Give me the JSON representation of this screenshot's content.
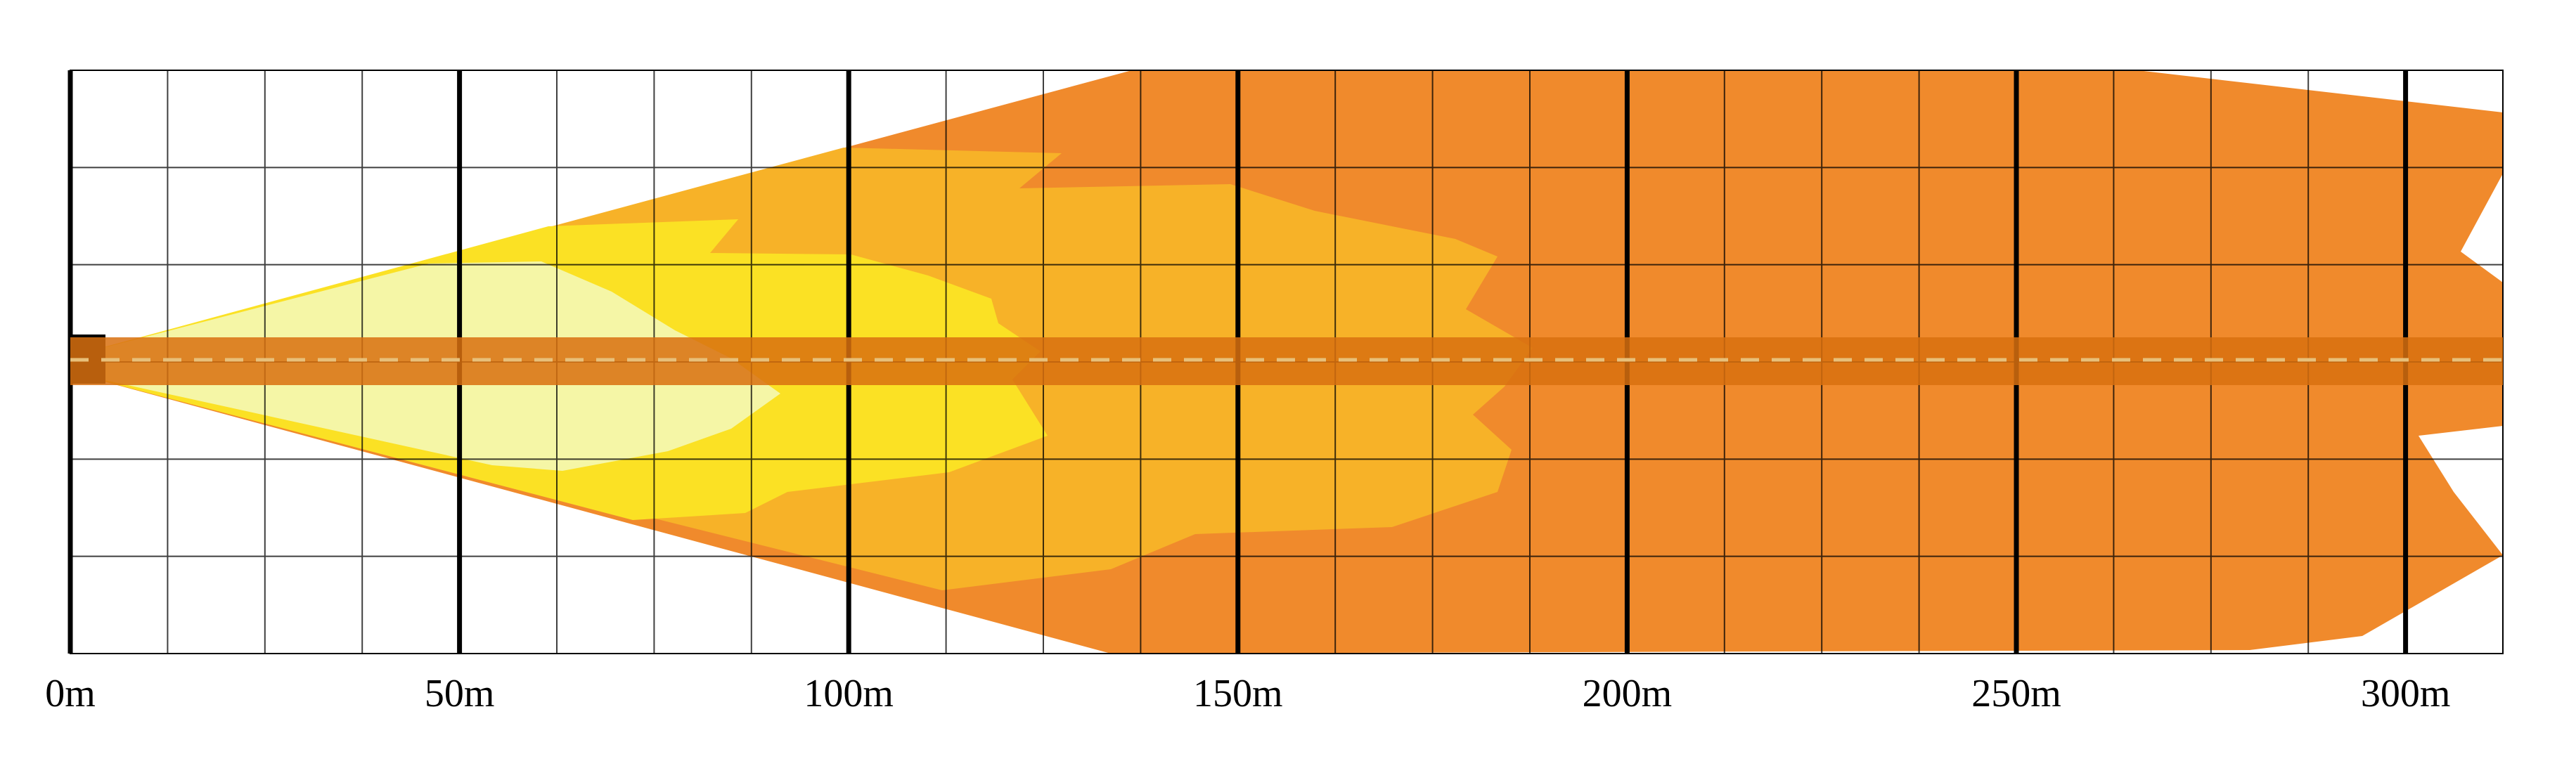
{
  "diagram": {
    "x_unit": "m",
    "x_range": [
      0,
      312.5
    ],
    "x_ticks": [
      {
        "value": 0,
        "label": "0m"
      },
      {
        "value": 50,
        "label": "50m"
      },
      {
        "value": 100,
        "label": "100m"
      },
      {
        "value": 150,
        "label": "150m"
      },
      {
        "value": 200,
        "label": "200m"
      },
      {
        "value": 250,
        "label": "250m"
      },
      {
        "value": 300,
        "label": "300m"
      }
    ],
    "zones": [
      {
        "color": "#f08a2c"
      },
      {
        "color": "#f7b228"
      },
      {
        "color": "#fbe124"
      },
      {
        "color": "#f5f6a6"
      }
    ],
    "center_band_color": "#d8700f",
    "centerline_color": "#e8c07a"
  }
}
